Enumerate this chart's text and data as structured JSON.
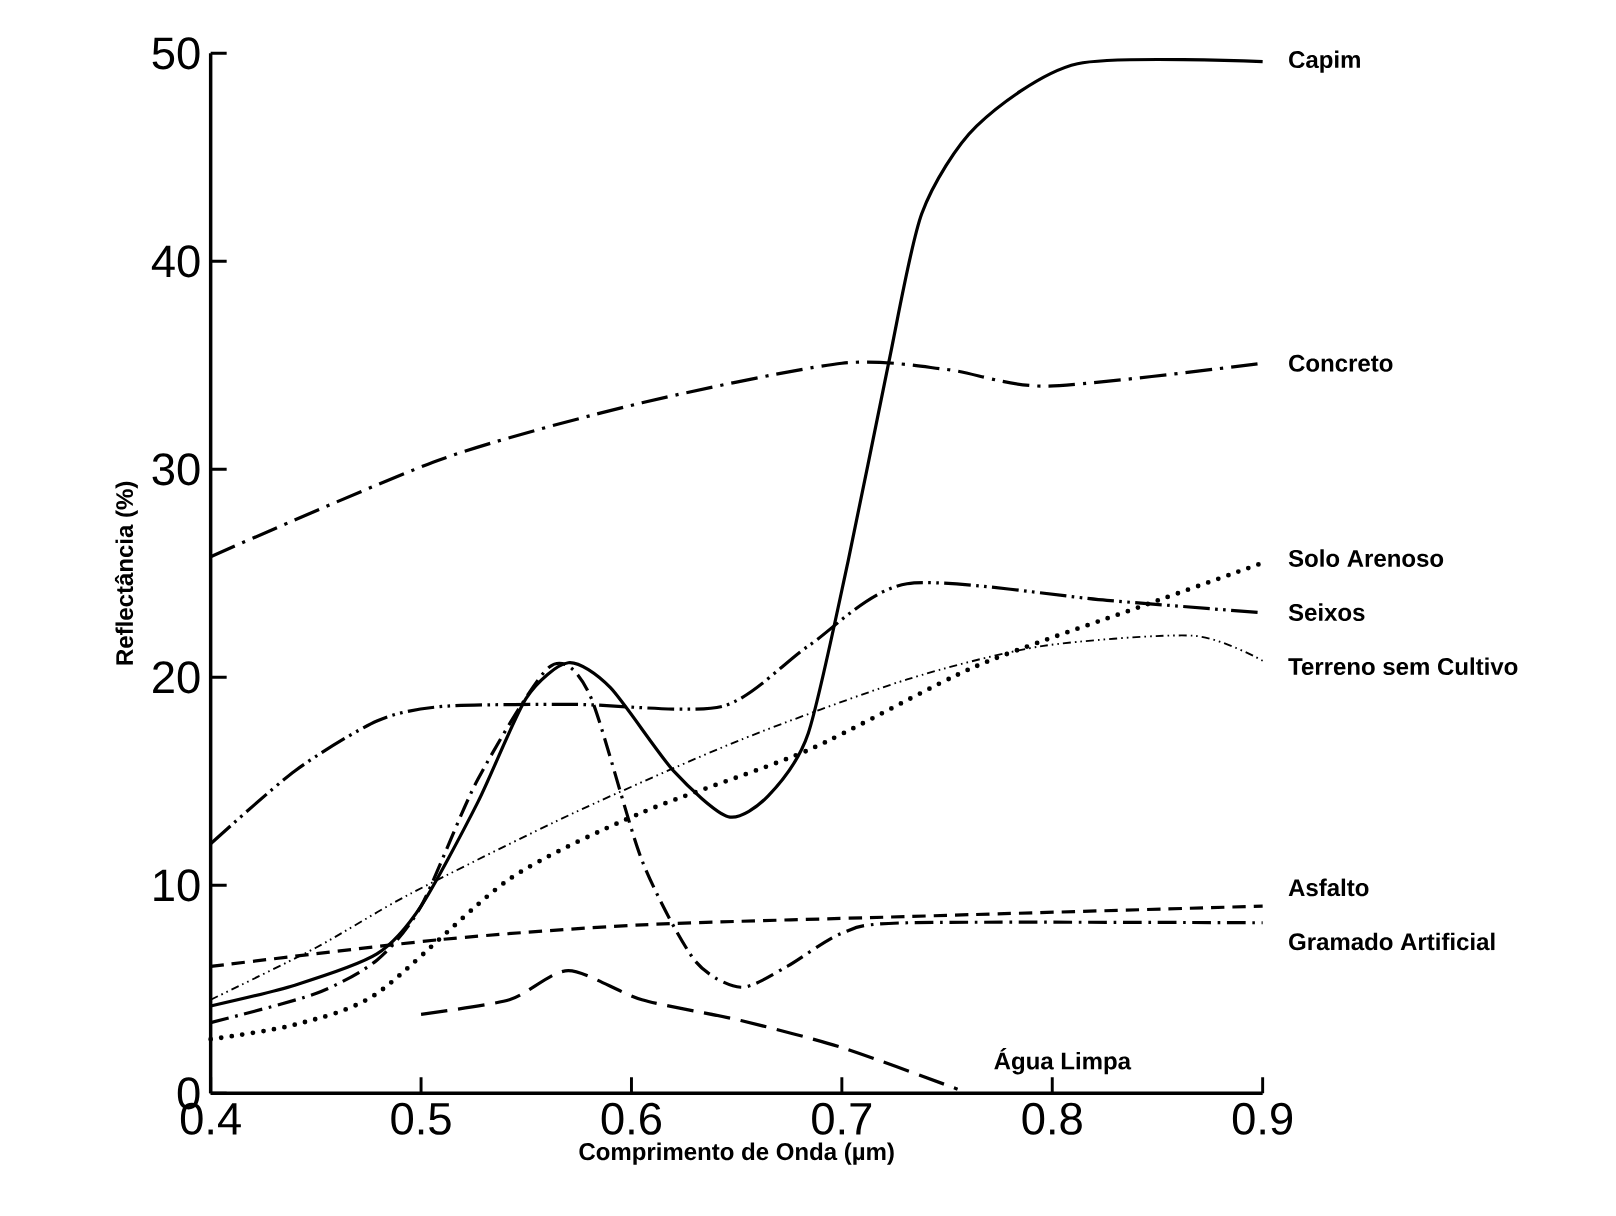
{
  "chart_data": {
    "type": "line",
    "xlabel": "Comprimento de Onda (µm)",
    "ylabel": "Reflectância (%)",
    "xlim": [
      0.4,
      0.9
    ],
    "ylim": [
      0,
      50
    ],
    "xticks": [
      0.4,
      0.5,
      0.6,
      0.7,
      0.8,
      0.9
    ],
    "yticks": [
      0,
      10,
      20,
      30,
      40,
      50
    ],
    "series": [
      {
        "name": "Capim",
        "color": "#000000",
        "line_style": "solid",
        "x": [
          0.4,
          0.44,
          0.479,
          0.5,
          0.527,
          0.55,
          0.57,
          0.59,
          0.62,
          0.646,
          0.665,
          0.684,
          0.703,
          0.722,
          0.738,
          0.764,
          0.812,
          0.9
        ],
        "values": [
          4.2,
          5.2,
          6.7,
          9,
          14,
          19,
          20.7,
          19.5,
          15.5,
          13.3,
          14.3,
          17.3,
          25.6,
          35,
          42.3,
          46.5,
          49.5,
          49.6
        ]
      },
      {
        "name": "Concreto",
        "color": "#000000",
        "line_style": "longdashdot",
        "x": [
          0.4,
          0.51,
          0.605,
          0.7,
          0.75,
          0.798,
          0.9
        ],
        "values": [
          25.8,
          30.5,
          33.2,
          35.1,
          34.8,
          34,
          35.1
        ]
      },
      {
        "name": "Solo Arenoso",
        "color": "#000000",
        "line_style": "dotted",
        "x": [
          0.4,
          0.44,
          0.479,
          0.542,
          0.605,
          0.684,
          0.763,
          0.842,
          0.9
        ],
        "values": [
          2.6,
          3.3,
          4.8,
          10.3,
          13.5,
          16.5,
          20.5,
          23.4,
          25.5
        ]
      },
      {
        "name": "Seixos",
        "color": "#000000",
        "line_style": "longdashdotdot",
        "x": [
          0.4,
          0.44,
          0.479,
          0.51,
          0.573,
          0.643,
          0.684,
          0.731,
          0.826,
          0.9
        ],
        "values": [
          12,
          15.5,
          17.9,
          18.6,
          18.7,
          18.6,
          21.5,
          24.5,
          23.7,
          23.1
        ]
      },
      {
        "name": "Terreno sem Cultivo",
        "color": "#000000",
        "line_style": "dashdotdot",
        "x": [
          0.4,
          0.45,
          0.495,
          0.573,
          0.652,
          0.731,
          0.795,
          0.867,
          0.9
        ],
        "values": [
          4.5,
          7,
          9.6,
          13.5,
          17,
          19.9,
          21.5,
          22,
          20.8
        ]
      },
      {
        "name": "Asfalto",
        "color": "#000000",
        "line_style": "dashed",
        "x": [
          0.4,
          0.51,
          0.605,
          0.731,
          0.9
        ],
        "values": [
          6.1,
          7.4,
          8.1,
          8.5,
          9
        ]
      },
      {
        "name": "Gramado Artificial",
        "color": "#000000",
        "line_style": "dashdot",
        "x": [
          0.4,
          0.45,
          0.479,
          0.5,
          0.527,
          0.561,
          0.58,
          0.605,
          0.63,
          0.652,
          0.674,
          0.7,
          0.731,
          0.9
        ],
        "values": [
          3.4,
          4.8,
          6.4,
          9,
          15.1,
          20.5,
          19.2,
          11.2,
          6.4,
          5.1,
          6.1,
          7.7,
          8.2,
          8.2
        ]
      },
      {
        "name": "Água Limpa",
        "color": "#000000",
        "line_style": "longdashed",
        "x": [
          0.5,
          0.542,
          0.57,
          0.605,
          0.652,
          0.7,
          0.755
        ],
        "values": [
          3.8,
          4.5,
          5.9,
          4.5,
          3.5,
          2.2,
          0.2
        ]
      }
    ]
  }
}
